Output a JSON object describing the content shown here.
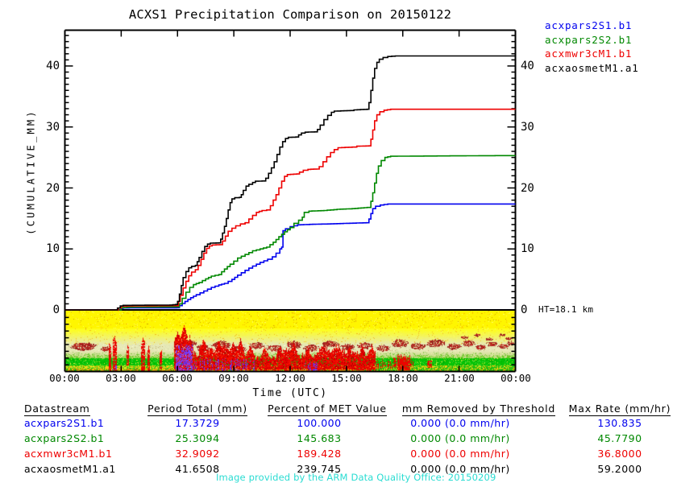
{
  "title": "ACXS1 Precipitation Comparison on 20150122",
  "legend": {
    "items": [
      {
        "label": "acxpars2S1.b1",
        "color": "#0000ee"
      },
      {
        "label": "acxpars2S2.b1",
        "color": "#008800"
      },
      {
        "label": "acxmwr3cM1.b1",
        "color": "#ee0000"
      },
      {
        "label": "acxaosmetM1.a1",
        "color": "#000000"
      }
    ]
  },
  "axes": {
    "y_label": "(CUMULATIVE_MM)",
    "x_label": "Time (UTC)",
    "y_ticks": [
      "0",
      "10",
      "20",
      "30",
      "40"
    ],
    "x_ticks": [
      "00:00",
      "03:00",
      "06:00",
      "09:00",
      "12:00",
      "15:00",
      "18:00",
      "21:00",
      "00:00"
    ],
    "ht_label": "HT=18.1 km"
  },
  "table": {
    "headers": [
      "Datastream",
      "Period Total (mm)",
      "Percent of MET Value",
      "mm Removed by Threshold",
      "Max Rate (mm/hr)"
    ],
    "rows": [
      {
        "datastream": "acxpars2S1.b1",
        "period_total": "17.3729",
        "percent_met": "100.000",
        "mm_removed": "0.000 (0.0 mm/hr)",
        "max_rate": "130.835",
        "color": "#0000ee"
      },
      {
        "datastream": "acxpars2S2.b1",
        "period_total": "25.3094",
        "percent_met": "145.683",
        "mm_removed": "0.000 (0.0 mm/hr)",
        "max_rate": "45.7790",
        "color": "#008800"
      },
      {
        "datastream": "acxmwr3cM1.b1",
        "period_total": "32.9092",
        "percent_met": "189.428",
        "mm_removed": "0.000 (0.0 mm/hr)",
        "max_rate": "36.8000",
        "color": "#ee0000"
      },
      {
        "datastream": "acxaosmetM1.a1",
        "period_total": "41.6508",
        "percent_met": "239.745",
        "mm_removed": "0.000 (0.0 mm/hr)",
        "max_rate": "59.2000",
        "color": "#000000"
      }
    ]
  },
  "credit": {
    "text": "Image provided by the ARM Data Quality Office: 20150209",
    "color": "#2adcd2"
  },
  "chart_data": {
    "type": "line",
    "title": "ACXS1 Precipitation Comparison on 20150122",
    "xlabel": "Time (UTC)",
    "ylabel": "(CUMULATIVE_MM)",
    "xlim_hours": [
      0,
      24
    ],
    "ylim": [
      0,
      45.9
    ],
    "x_tick_hours": [
      0,
      3,
      6,
      9,
      12,
      15,
      18,
      21,
      24
    ],
    "y_tick_values": [
      0,
      10,
      20,
      30,
      40
    ],
    "series": [
      {
        "name": "acxpars2S1.b1",
        "color": "#0000ee",
        "points": [
          [
            0,
            0
          ],
          [
            2.9,
            0
          ],
          [
            3.0,
            0.25
          ],
          [
            3.1,
            0.32
          ],
          [
            5.95,
            0.35
          ],
          [
            6.1,
            0.7
          ],
          [
            6.4,
            1.4
          ],
          [
            6.7,
            2.0
          ],
          [
            7.0,
            2.5
          ],
          [
            7.4,
            3.1
          ],
          [
            7.8,
            3.7
          ],
          [
            8.2,
            4.1
          ],
          [
            8.5,
            4.35
          ],
          [
            8.9,
            5.0
          ],
          [
            9.2,
            5.7
          ],
          [
            9.6,
            6.5
          ],
          [
            10.0,
            7.2
          ],
          [
            10.4,
            7.8
          ],
          [
            10.8,
            8.3
          ],
          [
            11.05,
            8.7
          ],
          [
            11.25,
            9.3
          ],
          [
            11.45,
            10.0
          ],
          [
            11.55,
            10.3
          ],
          [
            11.62,
            13.0
          ],
          [
            11.75,
            13.3
          ],
          [
            12.0,
            13.65
          ],
          [
            12.4,
            13.95
          ],
          [
            13.2,
            14.05
          ],
          [
            14.0,
            14.1
          ],
          [
            15.0,
            14.2
          ],
          [
            16.05,
            14.3
          ],
          [
            16.2,
            14.9
          ],
          [
            16.3,
            15.8
          ],
          [
            16.4,
            16.6
          ],
          [
            16.55,
            17.0
          ],
          [
            16.8,
            17.2
          ],
          [
            17.2,
            17.37
          ],
          [
            24,
            17.37
          ]
        ]
      },
      {
        "name": "acxpars2S2.b1",
        "color": "#008800",
        "points": [
          [
            0,
            0
          ],
          [
            2.85,
            0
          ],
          [
            3.0,
            0.35
          ],
          [
            3.3,
            0.45
          ],
          [
            5.95,
            0.5
          ],
          [
            6.1,
            1.0
          ],
          [
            6.25,
            1.9
          ],
          [
            6.45,
            2.9
          ],
          [
            6.65,
            3.7
          ],
          [
            6.85,
            4.15
          ],
          [
            7.15,
            4.5
          ],
          [
            7.5,
            5.1
          ],
          [
            7.8,
            5.55
          ],
          [
            8.2,
            5.8
          ],
          [
            8.5,
            6.7
          ],
          [
            8.8,
            7.5
          ],
          [
            9.2,
            8.5
          ],
          [
            9.6,
            9.1
          ],
          [
            10.0,
            9.7
          ],
          [
            10.4,
            10.0
          ],
          [
            10.75,
            10.3
          ],
          [
            11.1,
            11.1
          ],
          [
            11.4,
            12.0
          ],
          [
            11.7,
            12.8
          ],
          [
            12.0,
            13.5
          ],
          [
            12.2,
            14.2
          ],
          [
            12.45,
            14.7
          ],
          [
            12.65,
            15.2
          ],
          [
            12.75,
            16.0
          ],
          [
            13.0,
            16.2
          ],
          [
            13.8,
            16.3
          ],
          [
            14.5,
            16.5
          ],
          [
            15.3,
            16.6
          ],
          [
            16.1,
            16.8
          ],
          [
            16.3,
            17.8
          ],
          [
            16.4,
            19.2
          ],
          [
            16.5,
            20.8
          ],
          [
            16.6,
            22.4
          ],
          [
            16.7,
            23.6
          ],
          [
            16.85,
            24.5
          ],
          [
            17.05,
            25.0
          ],
          [
            17.35,
            25.2
          ],
          [
            20,
            25.25
          ],
          [
            23.6,
            25.31
          ],
          [
            24,
            25.31
          ]
        ]
      },
      {
        "name": "acxmwr3cM1.b1",
        "color": "#ee0000",
        "points": [
          [
            0,
            0
          ],
          [
            2.75,
            0
          ],
          [
            2.85,
            0.3
          ],
          [
            3.0,
            0.6
          ],
          [
            3.3,
            0.65
          ],
          [
            5.9,
            0.7
          ],
          [
            6.05,
            1.4
          ],
          [
            6.15,
            2.4
          ],
          [
            6.3,
            3.6
          ],
          [
            6.45,
            4.7
          ],
          [
            6.6,
            5.6
          ],
          [
            6.75,
            6.2
          ],
          [
            6.95,
            6.6
          ],
          [
            7.1,
            7.3
          ],
          [
            7.25,
            8.3
          ],
          [
            7.4,
            9.3
          ],
          [
            7.55,
            10.1
          ],
          [
            7.7,
            10.5
          ],
          [
            7.85,
            10.65
          ],
          [
            8.25,
            10.7
          ],
          [
            8.4,
            11.3
          ],
          [
            8.55,
            12.1
          ],
          [
            8.7,
            12.9
          ],
          [
            8.9,
            13.4
          ],
          [
            9.1,
            13.8
          ],
          [
            9.35,
            14.1
          ],
          [
            9.6,
            14.3
          ],
          [
            9.8,
            14.9
          ],
          [
            10.0,
            15.5
          ],
          [
            10.2,
            16.0
          ],
          [
            10.5,
            16.3
          ],
          [
            10.75,
            16.4
          ],
          [
            10.95,
            17.1
          ],
          [
            11.1,
            18.0
          ],
          [
            11.25,
            18.9
          ],
          [
            11.4,
            20.0
          ],
          [
            11.55,
            21.1
          ],
          [
            11.7,
            21.9
          ],
          [
            11.85,
            22.2
          ],
          [
            12.35,
            22.3
          ],
          [
            12.5,
            22.6
          ],
          [
            12.7,
            22.9
          ],
          [
            12.95,
            23.05
          ],
          [
            13.4,
            23.1
          ],
          [
            13.55,
            23.5
          ],
          [
            13.75,
            24.3
          ],
          [
            13.95,
            25.1
          ],
          [
            14.15,
            25.8
          ],
          [
            14.35,
            26.3
          ],
          [
            14.55,
            26.6
          ],
          [
            15.3,
            26.7
          ],
          [
            15.55,
            26.85
          ],
          [
            16.2,
            26.9
          ],
          [
            16.3,
            28.0
          ],
          [
            16.4,
            29.5
          ],
          [
            16.5,
            31.0
          ],
          [
            16.62,
            32.0
          ],
          [
            16.78,
            32.5
          ],
          [
            17.0,
            32.75
          ],
          [
            17.35,
            32.9
          ],
          [
            24,
            32.9
          ]
        ]
      },
      {
        "name": "acxaosmetM1.a1",
        "color": "#000000",
        "points": [
          [
            0,
            0
          ],
          [
            2.7,
            0
          ],
          [
            2.8,
            0.3
          ],
          [
            2.95,
            0.65
          ],
          [
            3.1,
            0.75
          ],
          [
            5.6,
            0.8
          ],
          [
            5.9,
            0.9
          ],
          [
            6.0,
            1.4
          ],
          [
            6.1,
            2.6
          ],
          [
            6.2,
            4.0
          ],
          [
            6.3,
            5.3
          ],
          [
            6.45,
            6.3
          ],
          [
            6.6,
            6.9
          ],
          [
            6.75,
            7.15
          ],
          [
            6.95,
            7.3
          ],
          [
            7.05,
            7.9
          ],
          [
            7.15,
            8.6
          ],
          [
            7.3,
            9.6
          ],
          [
            7.45,
            10.4
          ],
          [
            7.6,
            10.8
          ],
          [
            7.75,
            10.95
          ],
          [
            8.2,
            11.0
          ],
          [
            8.3,
            11.6
          ],
          [
            8.4,
            12.6
          ],
          [
            8.5,
            13.7
          ],
          [
            8.6,
            15.0
          ],
          [
            8.7,
            16.4
          ],
          [
            8.8,
            17.6
          ],
          [
            8.9,
            18.2
          ],
          [
            9.05,
            18.4
          ],
          [
            9.3,
            18.45
          ],
          [
            9.4,
            18.9
          ],
          [
            9.5,
            19.6
          ],
          [
            9.65,
            20.3
          ],
          [
            9.8,
            20.6
          ],
          [
            10.0,
            20.9
          ],
          [
            10.15,
            21.1
          ],
          [
            10.5,
            21.15
          ],
          [
            10.7,
            21.6
          ],
          [
            10.85,
            22.4
          ],
          [
            11.0,
            23.3
          ],
          [
            11.15,
            24.3
          ],
          [
            11.3,
            25.5
          ],
          [
            11.45,
            26.7
          ],
          [
            11.6,
            27.6
          ],
          [
            11.75,
            28.1
          ],
          [
            11.9,
            28.3
          ],
          [
            12.3,
            28.35
          ],
          [
            12.45,
            28.7
          ],
          [
            12.6,
            29.0
          ],
          [
            12.8,
            29.15
          ],
          [
            13.3,
            29.2
          ],
          [
            13.45,
            29.6
          ],
          [
            13.6,
            30.3
          ],
          [
            13.8,
            31.2
          ],
          [
            14.0,
            31.9
          ],
          [
            14.2,
            32.4
          ],
          [
            14.35,
            32.6
          ],
          [
            15.2,
            32.7
          ],
          [
            15.4,
            32.8
          ],
          [
            16.1,
            32.9
          ],
          [
            16.2,
            34.0
          ],
          [
            16.3,
            36.0
          ],
          [
            16.4,
            38.0
          ],
          [
            16.5,
            39.6
          ],
          [
            16.62,
            40.6
          ],
          [
            16.75,
            41.1
          ],
          [
            16.95,
            41.4
          ],
          [
            17.2,
            41.55
          ],
          [
            17.6,
            41.65
          ],
          [
            24,
            41.65
          ]
        ]
      }
    ],
    "strip": {
      "label": "HT=18.1 km",
      "height_km": 18.1,
      "description": "time-height backscatter panel below zero line: yellow background fading to pale tan, green band near bottom, red precipitation streaks, purple patches after 06:00",
      "colors": {
        "yellow": "#fff400",
        "orange": "#ffb400",
        "pale": "#e2e4b4",
        "tan": "#c8c89b",
        "green": "#00c300",
        "red": "#e00000",
        "dark_red": "#a02020",
        "purple": "#7a3cfa"
      }
    }
  }
}
